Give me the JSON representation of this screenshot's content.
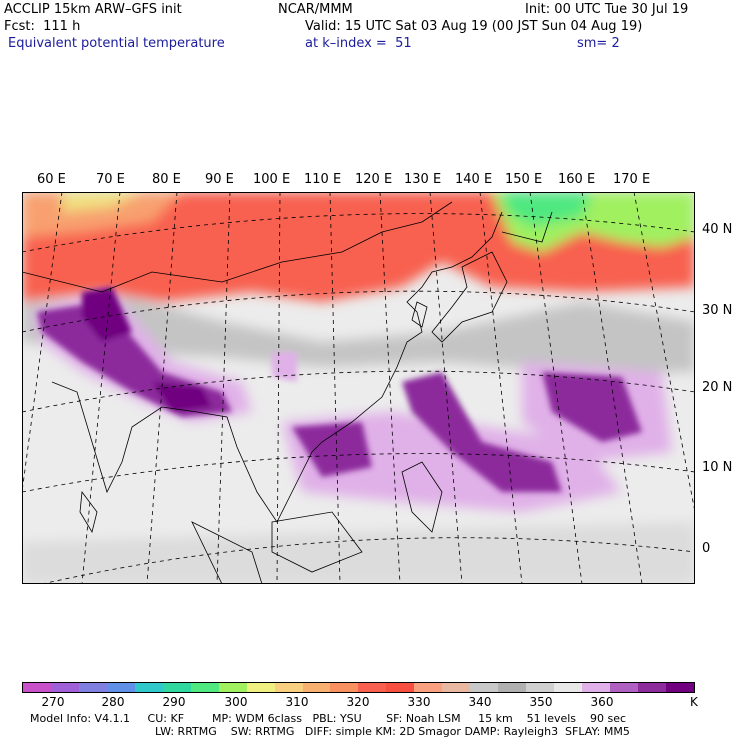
{
  "header": {
    "model": "ACCLIP 15km ARW–GFS init",
    "org": "NCAR/MMM",
    "init": "Init: 00 UTC Tue 30 Jul 19",
    "fcst": "Fcst:  111 h",
    "valid": "Valid: 15 UTC Sat 03 Aug 19 (00 JST Sun 04 Aug 19)",
    "field": "Equivalent potential temperature",
    "level": "at k–index =  51",
    "smoothing": "sm= 2"
  },
  "map": {
    "lon_labels": [
      "60 E",
      "70 E",
      "80 E",
      "90 E",
      "100 E",
      "110 E",
      "120 E",
      "130 E",
      "140 E",
      "150 E",
      "160 E",
      "170 E"
    ],
    "lat_labels": [
      "40 N",
      "30 N",
      "20 N",
      "10 N",
      "0"
    ]
  },
  "colorbar": {
    "colors": [
      "#c850c8",
      "#a060d8",
      "#8080e0",
      "#6090e8",
      "#30c8c8",
      "#30d8a0",
      "#50e880",
      "#a0f060",
      "#f0f080",
      "#f8d080",
      "#f8b070",
      "#f89060",
      "#f86050",
      "#f85040",
      "#f8a080",
      "#e8b8a0",
      "#c8c8c8",
      "#b0b0b0",
      "#d0d0d0",
      "#e8e8e8",
      "#e0b0e8",
      "#b060c0",
      "#8c2c9c",
      "#700080"
    ],
    "tick_labels": [
      "270",
      "280",
      "290",
      "300",
      "310",
      "320",
      "330",
      "340",
      "350",
      "360"
    ],
    "unit": "K"
  },
  "footer": {
    "line1": "Model Info: V4.1.1     CU: KF        MP: WDM 6class   PBL: YSU       SF: Noah LSM     15 km    51 levels    90 sec",
    "line2": "LW: RRTMG    SW: RRTMG   DIFF: simple KM: 2D Smagor DAMP: Rayleigh3  SFLAY: MM5"
  }
}
